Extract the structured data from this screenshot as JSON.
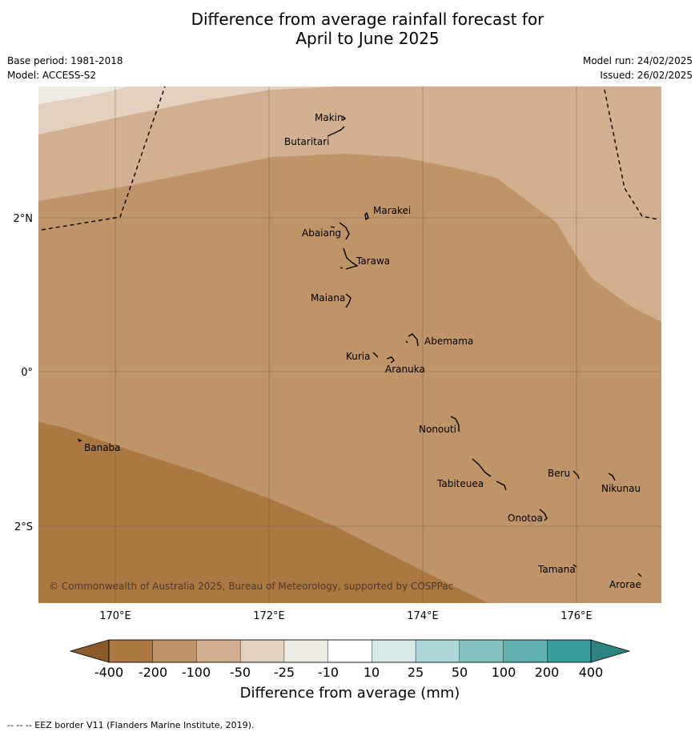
{
  "title": {
    "line1": "Difference from average rainfall forecast for",
    "line2": "April to June 2025"
  },
  "meta": {
    "base_period": "Base period: 1981-2018",
    "model": "Model: ACCESS-S2",
    "model_run": "Model run: 24/02/2025",
    "issued": "Issued: 26/02/2025"
  },
  "map": {
    "lon_ticks": [
      "170°E",
      "172°E",
      "174°E",
      "176°E"
    ],
    "lat_ticks": [
      "2°N",
      "0°",
      "2°S"
    ],
    "places": [
      {
        "name": "Makin"
      },
      {
        "name": "Butaritari"
      },
      {
        "name": "Marakei"
      },
      {
        "name": "Abaiang"
      },
      {
        "name": "Tarawa"
      },
      {
        "name": "Maiana"
      },
      {
        "name": "Abemama"
      },
      {
        "name": "Kuria"
      },
      {
        "name": "Aranuka"
      },
      {
        "name": "Banaba"
      },
      {
        "name": "Nonouti"
      },
      {
        "name": "Beru"
      },
      {
        "name": "Tabiteuea"
      },
      {
        "name": "Nikunau"
      },
      {
        "name": "Onotoa"
      },
      {
        "name": "Tamana"
      },
      {
        "name": "Arorae"
      }
    ],
    "copyright": "© Commonwealth of Australia 2025, Bureau of Meteorology, supported by COSPPac",
    "fill_colors": {
      "lt_neg400": "#ac7842",
      "neg400_neg200": "#ac7842",
      "neg200_neg100": "#c09469",
      "neg100_neg50": "#d2b08f",
      "neg50_neg25": "#e3d1c0",
      "neg25_neg10": "#eeebe5"
    }
  },
  "colorbar": {
    "title": "Difference from average (mm)",
    "ticks": [
      "-400",
      "-200",
      "-100",
      "-50",
      "-25",
      "-10",
      "10",
      "25",
      "50",
      "100",
      "200",
      "400"
    ],
    "colors": [
      "#ac7842",
      "#c09469",
      "#d2b08f",
      "#e3d1c0",
      "#eeebe5",
      "#ffffff",
      "#d6eae9",
      "#add8d7",
      "#85c3c2",
      "#5fb0ae",
      "#379d9c"
    ],
    "under_color": "#8b5a2b",
    "over_color": "#2e8280"
  },
  "footer": "--  --  -- EEZ border V11 (Flanders Marine Institute, 2019)."
}
